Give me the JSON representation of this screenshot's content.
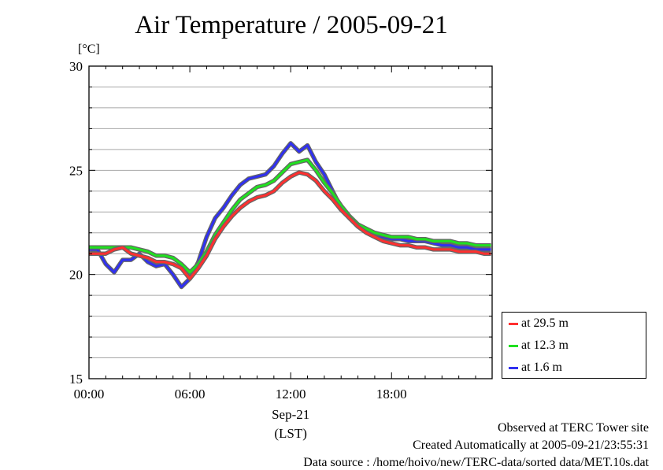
{
  "chart_data": {
    "type": "line",
    "title": "Air Temperature / 2005-09-21",
    "ylabel": "[°C]",
    "xlabel": "(LST)",
    "x_date_label": "Sep-21",
    "xlim": [
      "00:00",
      "23:59"
    ],
    "ylim": [
      15,
      30
    ],
    "x_ticks": [
      "00:00",
      "06:00",
      "12:00",
      "18:00"
    ],
    "y_ticks": [
      "15",
      "20",
      "25",
      "30"
    ],
    "grid": true,
    "legend_position": "right-bottom, outside",
    "series": [
      {
        "name": "at 29.5 m",
        "color": "#ff3030",
        "x": [
          "00:00",
          "00:30",
          "01:00",
          "01:30",
          "02:00",
          "02:30",
          "03:00",
          "03:30",
          "04:00",
          "04:30",
          "05:00",
          "05:30",
          "06:00",
          "06:30",
          "07:00",
          "07:30",
          "08:00",
          "08:30",
          "09:00",
          "09:30",
          "10:00",
          "10:30",
          "11:00",
          "11:30",
          "12:00",
          "12:30",
          "13:00",
          "13:30",
          "14:00",
          "14:30",
          "15:00",
          "15:30",
          "16:00",
          "16:30",
          "17:00",
          "17:30",
          "18:00",
          "18:30",
          "19:00",
          "19:30",
          "20:00",
          "20:30",
          "21:00",
          "21:30",
          "22:00",
          "22:30",
          "23:00",
          "23:30",
          "23:55"
        ],
        "values": [
          21.0,
          21.0,
          21.0,
          21.2,
          21.3,
          21.0,
          20.9,
          20.8,
          20.6,
          20.6,
          20.5,
          20.3,
          19.8,
          20.3,
          20.9,
          21.7,
          22.3,
          22.8,
          23.2,
          23.5,
          23.7,
          23.8,
          24.0,
          24.4,
          24.7,
          24.9,
          24.8,
          24.5,
          24.0,
          23.6,
          23.1,
          22.7,
          22.3,
          22.0,
          21.8,
          21.6,
          21.5,
          21.4,
          21.4,
          21.3,
          21.3,
          21.2,
          21.2,
          21.2,
          21.1,
          21.1,
          21.1,
          21.0,
          21.0
        ]
      },
      {
        "name": "at 12.3 m",
        "color": "#20e020",
        "x": [
          "00:00",
          "00:30",
          "01:00",
          "01:30",
          "02:00",
          "02:30",
          "03:00",
          "03:30",
          "04:00",
          "04:30",
          "05:00",
          "05:30",
          "06:00",
          "06:30",
          "07:00",
          "07:30",
          "08:00",
          "08:30",
          "09:00",
          "09:30",
          "10:00",
          "10:30",
          "11:00",
          "11:30",
          "12:00",
          "12:30",
          "13:00",
          "13:30",
          "14:00",
          "14:30",
          "15:00",
          "15:30",
          "16:00",
          "16:30",
          "17:00",
          "17:30",
          "18:00",
          "18:30",
          "19:00",
          "19:30",
          "20:00",
          "20:30",
          "21:00",
          "21:30",
          "22:00",
          "22:30",
          "23:00",
          "23:30",
          "23:55"
        ],
        "values": [
          21.3,
          21.3,
          21.3,
          21.3,
          21.3,
          21.3,
          21.2,
          21.1,
          20.9,
          20.9,
          20.8,
          20.5,
          20.1,
          20.5,
          21.1,
          21.9,
          22.5,
          23.1,
          23.6,
          23.9,
          24.2,
          24.3,
          24.5,
          24.9,
          25.3,
          25.4,
          25.5,
          25.0,
          24.4,
          23.9,
          23.3,
          22.8,
          22.4,
          22.2,
          22.0,
          21.9,
          21.8,
          21.8,
          21.8,
          21.7,
          21.7,
          21.6,
          21.6,
          21.6,
          21.5,
          21.5,
          21.4,
          21.4,
          21.4
        ]
      },
      {
        "name": "at 1.6 m",
        "color": "#3030f0",
        "x": [
          "00:00",
          "00:30",
          "01:00",
          "01:30",
          "02:00",
          "02:30",
          "03:00",
          "03:30",
          "04:00",
          "04:30",
          "05:00",
          "05:30",
          "06:00",
          "06:30",
          "07:00",
          "07:30",
          "08:00",
          "08:30",
          "09:00",
          "09:30",
          "10:00",
          "10:30",
          "11:00",
          "11:30",
          "12:00",
          "12:30",
          "13:00",
          "13:30",
          "14:00",
          "14:30",
          "15:00",
          "15:30",
          "16:00",
          "16:30",
          "17:00",
          "17:30",
          "18:00",
          "18:30",
          "19:00",
          "19:30",
          "20:00",
          "20:30",
          "21:00",
          "21:30",
          "22:00",
          "22:30",
          "23:00",
          "23:30",
          "23:55"
        ],
        "values": [
          21.2,
          21.2,
          20.5,
          20.1,
          20.7,
          20.7,
          21.0,
          20.6,
          20.4,
          20.5,
          20.0,
          19.4,
          19.8,
          20.6,
          21.8,
          22.7,
          23.2,
          23.8,
          24.3,
          24.6,
          24.7,
          24.8,
          25.2,
          25.8,
          26.3,
          25.9,
          26.2,
          25.4,
          24.8,
          24.0,
          23.2,
          22.7,
          22.3,
          22.1,
          21.9,
          21.8,
          21.7,
          21.7,
          21.6,
          21.6,
          21.6,
          21.5,
          21.4,
          21.4,
          21.3,
          21.3,
          21.2,
          21.2,
          21.2
        ]
      }
    ]
  },
  "footer": {
    "line1": "Observed at TERC Tower site",
    "line2": "Created Automatically at 2005-09-21/23:55:31",
    "line3": "Data source : /home/hoivo/new/TERC-data/sorted  data/MET.10s.dat"
  }
}
